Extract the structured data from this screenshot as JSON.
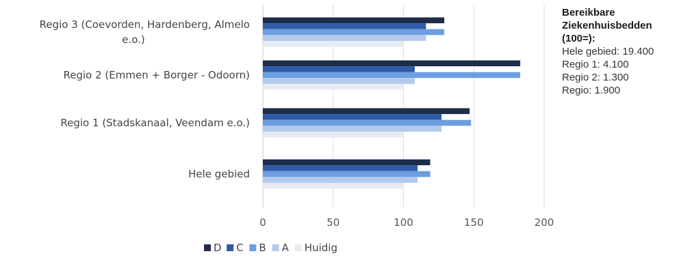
{
  "chart_data": {
    "type": "bar",
    "orientation": "horizontal",
    "categories": [
      [
        "Regio 3 (Coevorden, Hardenberg, Almelo",
        "e.o.)"
      ],
      [
        "Regio 2 (Emmen + Borger - Odoorn)"
      ],
      [
        "Regio 1 (Stadskanaal, Veendam e.o.)"
      ],
      [
        "Hele gebied"
      ]
    ],
    "series": [
      {
        "name": "D",
        "color": "#1f2d4a",
        "values": [
          129,
          183,
          147,
          119
        ]
      },
      {
        "name": "C",
        "color": "#2f5ba6",
        "values": [
          116,
          108,
          127,
          110
        ]
      },
      {
        "name": "B",
        "color": "#6d9ee0",
        "values": [
          129,
          183,
          148,
          119
        ]
      },
      {
        "name": "A",
        "color": "#b3c9ec",
        "values": [
          116,
          108,
          127,
          110
        ]
      },
      {
        "name": "Huidig",
        "color": "#e6ebf4",
        "values": [
          100,
          100,
          100,
          100
        ]
      }
    ],
    "xlim": [
      0,
      200
    ],
    "xticks": [
      0,
      50,
      100,
      150,
      200
    ],
    "grid": true,
    "legend_position": "bottom"
  },
  "side_note": {
    "title": "Bereikbare Ziekenhuisbedden (100=):",
    "lines": [
      "Hele gebied: 19.400",
      "Regio 1: 4.100",
      "Regio 2: 1.300",
      "Regio: 1.900"
    ]
  }
}
